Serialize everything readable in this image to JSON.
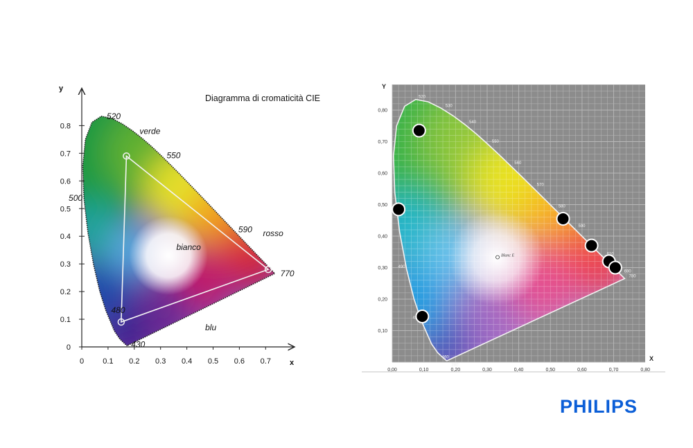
{
  "logo": {
    "text": "PHILIPS",
    "color": "#0b5ed7"
  },
  "chart_data": [
    {
      "type": "scatter",
      "title": "Diagramma di cromaticità CIE",
      "xlabel": "x",
      "ylabel": "y",
      "xlim": [
        0,
        0.8
      ],
      "ylim": [
        0,
        0.85
      ],
      "x_ticks": [
        "0",
        "0.1",
        "0.2",
        "0.3",
        "0.4",
        "0.5",
        "0.6",
        "0.7"
      ],
      "y_ticks": [
        "0",
        "0.1",
        "0.2",
        "0.3",
        "0.4",
        "0.5",
        "0.6",
        "0.7",
        "0.8"
      ],
      "grid": false,
      "wavelength_labels": [
        {
          "text": "520",
          "x": 0.074,
          "y": 0.834
        },
        {
          "text": "550",
          "x": 0.302,
          "y": 0.692
        },
        {
          "text": "590",
          "x": 0.575,
          "y": 0.424
        },
        {
          "text": "500",
          "x": 0.008,
          "y": 0.538
        },
        {
          "text": "480",
          "x": 0.091,
          "y": 0.133
        },
        {
          "text": "430",
          "x": 0.167,
          "y": 0.009
        },
        {
          "text": "770",
          "x": 0.735,
          "y": 0.265
        }
      ],
      "region_labels": [
        {
          "text": "verde",
          "x": 0.22,
          "y": 0.77
        },
        {
          "text": "rosso",
          "x": 0.69,
          "y": 0.4
        },
        {
          "text": "bianco",
          "x": 0.36,
          "y": 0.35
        },
        {
          "text": "blu",
          "x": 0.47,
          "y": 0.06
        }
      ],
      "gamut_triangle": {
        "x": [
          0.17,
          0.71,
          0.15
        ],
        "y": [
          0.69,
          0.28,
          0.09
        ]
      }
    },
    {
      "type": "scatter",
      "title": "",
      "xlabel": "X",
      "ylabel": "Y",
      "xlim": [
        0,
        0.8
      ],
      "ylim": [
        0,
        0.85
      ],
      "x_ticks": [
        "0,00",
        "0,10",
        "0,20",
        "0,30",
        "0,40",
        "0,50",
        "0,60",
        "0,70",
        "0,80"
      ],
      "y_ticks": [
        "0,10",
        "0,20",
        "0,30",
        "0,40",
        "0,50",
        "0,60",
        "0,70",
        "0,80"
      ],
      "grid": true,
      "wavelength_labels": [
        {
          "text": "520",
          "x": 0.07,
          "y": 0.834
        },
        {
          "text": "530",
          "x": 0.155,
          "y": 0.805
        },
        {
          "text": "540",
          "x": 0.23,
          "y": 0.754
        },
        {
          "text": "550",
          "x": 0.302,
          "y": 0.692
        },
        {
          "text": "560",
          "x": 0.373,
          "y": 0.624
        },
        {
          "text": "570",
          "x": 0.444,
          "y": 0.555
        },
        {
          "text": "580",
          "x": 0.512,
          "y": 0.487
        },
        {
          "text": "590",
          "x": 0.575,
          "y": 0.424
        },
        {
          "text": "610",
          "x": 0.665,
          "y": 0.335
        },
        {
          "text": "690",
          "x": 0.72,
          "y": 0.28
        },
        {
          "text": "780",
          "x": 0.735,
          "y": 0.265
        },
        {
          "text": "490",
          "x": 0.045,
          "y": 0.295
        },
        {
          "text": "480",
          "x": 0.091,
          "y": 0.133
        },
        {
          "text": "460",
          "x": 0.144,
          "y": 0.03
        },
        {
          "text": "380",
          "x": 0.174,
          "y": 0.005
        }
      ],
      "white_point": {
        "label": "Blanc E",
        "x": 0.333,
        "y": 0.333
      },
      "points": {
        "x": [
          0.085,
          0.02,
          0.095,
          0.54,
          0.63,
          0.685,
          0.705
        ],
        "y": [
          0.735,
          0.485,
          0.145,
          0.455,
          0.37,
          0.32,
          0.3
        ]
      }
    }
  ]
}
